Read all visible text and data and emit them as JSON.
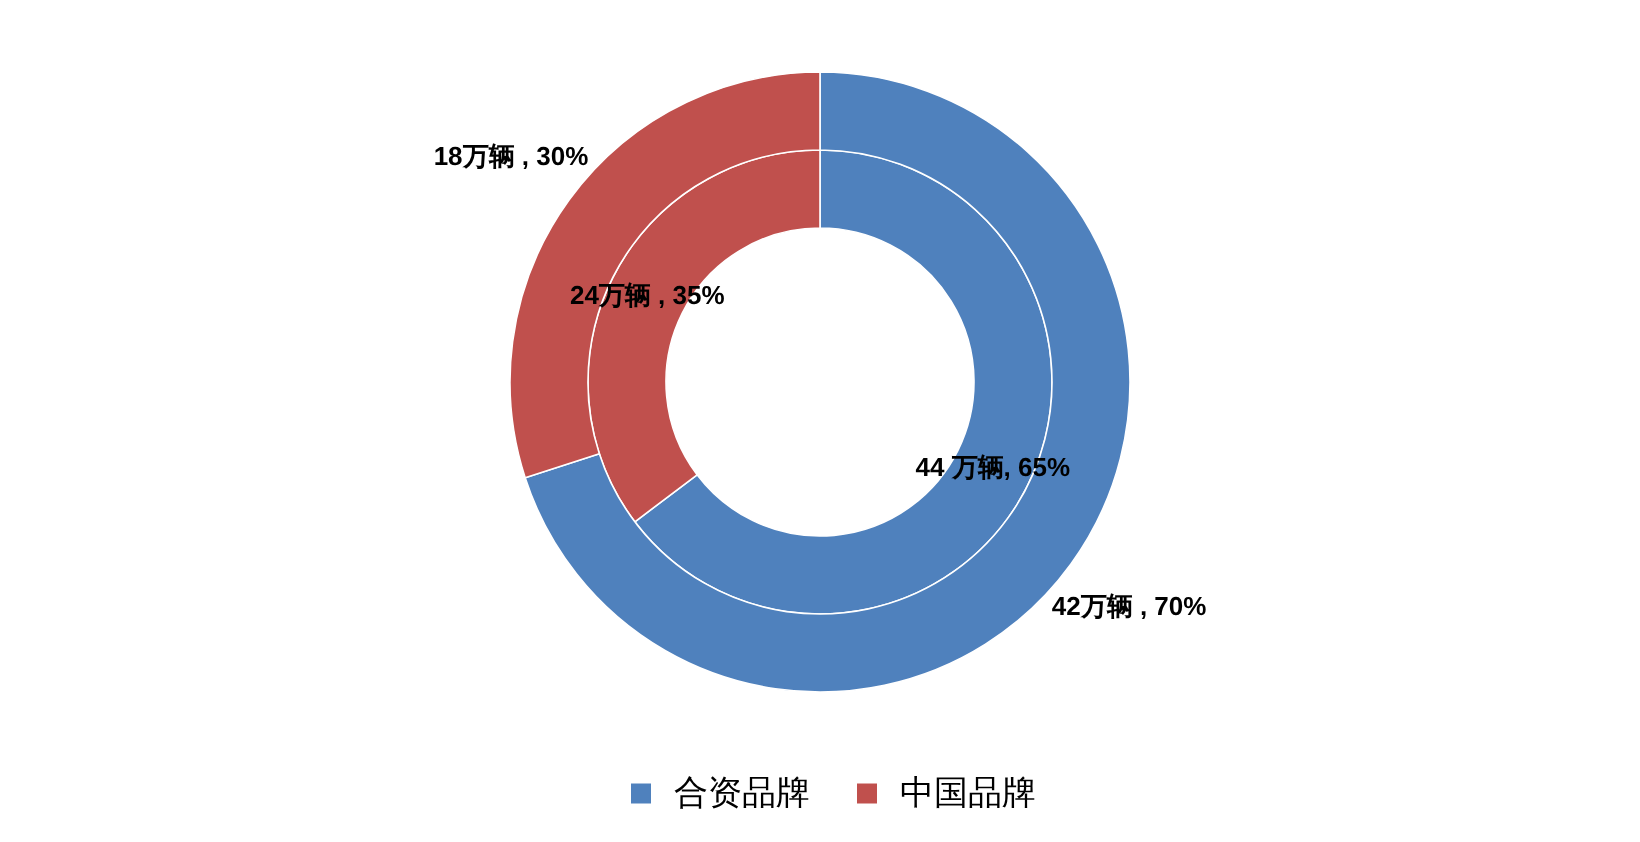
{
  "chart_data": {
    "type": "donut",
    "categories": [
      "合资品牌",
      "中国品牌"
    ],
    "colors": [
      "#4f81bd",
      "#c0504d"
    ],
    "series": [
      {
        "values": [
          44,
          24
        ],
        "value_labels": [
          "44 万辆, 65%",
          "24万辆 , 35%"
        ]
      },
      {
        "values": [
          42,
          18
        ],
        "value_labels": [
          "42万辆 , 70%",
          "18万辆 , 30%"
        ]
      }
    ],
    "legend": "bottom"
  }
}
